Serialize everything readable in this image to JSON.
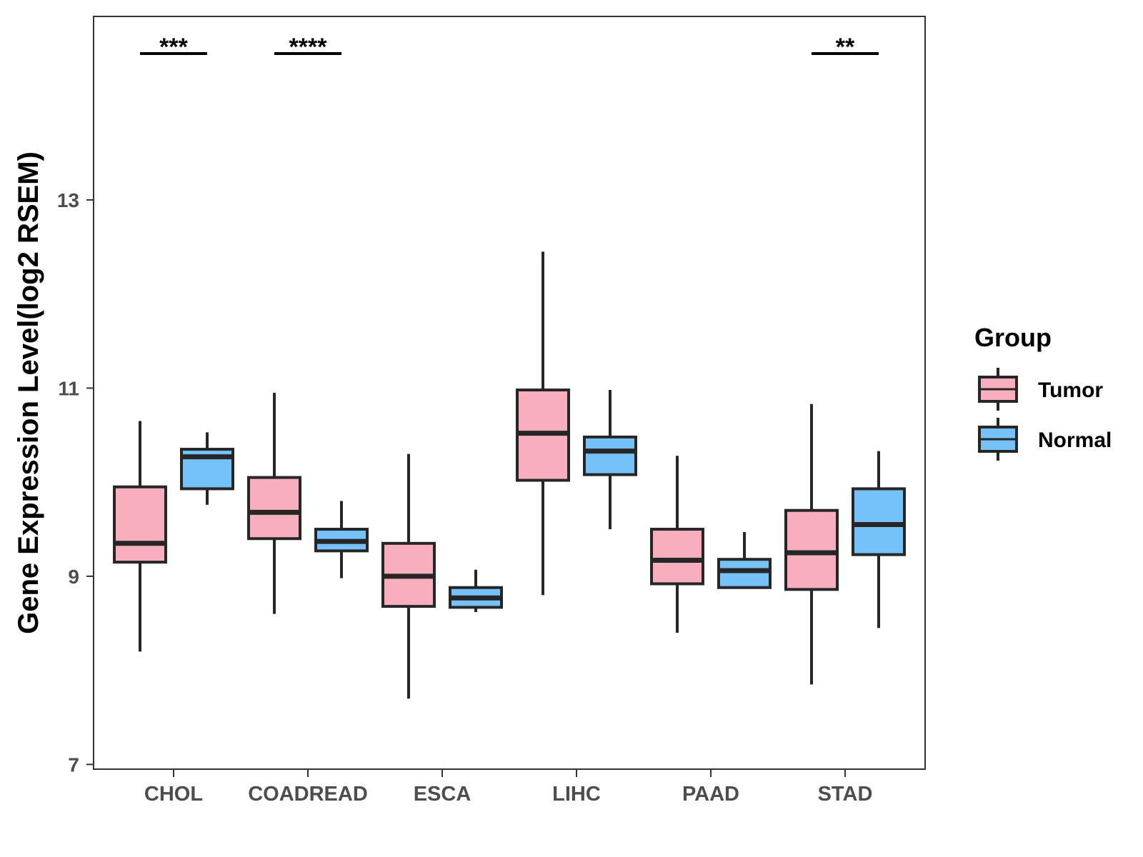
{
  "chart_data": {
    "type": "boxplot",
    "title": "",
    "xlabel": "",
    "ylabel": "Gene Expression Level(log2 RSEM)",
    "ylim": [
      6.95,
      14.95
    ],
    "yticks": [
      7,
      9,
      11,
      13
    ],
    "grid": false,
    "categories": [
      "CHOL",
      "COADREAD",
      "ESCA",
      "LIHC",
      "PAAD",
      "STAD"
    ],
    "legend": {
      "title": "Group",
      "position": "right",
      "entries": [
        {
          "name": "Tumor",
          "color": "#f9aec0"
        },
        {
          "name": "Normal",
          "color": "#76c1f9"
        }
      ]
    },
    "series": [
      {
        "name": "Tumor",
        "color": "#f9aec0",
        "boxes": [
          {
            "whisker_low": 8.2,
            "q1": 9.15,
            "median": 9.35,
            "q3": 9.95,
            "whisker_high": 10.65
          },
          {
            "whisker_low": 8.6,
            "q1": 9.4,
            "median": 9.68,
            "q3": 10.05,
            "whisker_high": 10.95
          },
          {
            "whisker_low": 7.7,
            "q1": 8.68,
            "median": 9.0,
            "q3": 9.35,
            "whisker_high": 10.3
          },
          {
            "whisker_low": 8.8,
            "q1": 10.02,
            "median": 10.52,
            "q3": 10.98,
            "whisker_high": 12.45
          },
          {
            "whisker_low": 8.4,
            "q1": 8.92,
            "median": 9.17,
            "q3": 9.5,
            "whisker_high": 10.28
          },
          {
            "whisker_low": 7.85,
            "q1": 8.86,
            "median": 9.25,
            "q3": 9.7,
            "whisker_high": 10.83
          }
        ]
      },
      {
        "name": "Normal",
        "color": "#76c1f9",
        "boxes": [
          {
            "whisker_low": 9.76,
            "q1": 9.93,
            "median": 10.27,
            "q3": 10.35,
            "whisker_high": 10.53
          },
          {
            "whisker_low": 8.98,
            "q1": 9.27,
            "median": 9.37,
            "q3": 9.5,
            "whisker_high": 9.8
          },
          {
            "whisker_low": 8.62,
            "q1": 8.67,
            "median": 8.77,
            "q3": 8.88,
            "whisker_high": 9.07
          },
          {
            "whisker_low": 9.5,
            "q1": 10.08,
            "median": 10.33,
            "q3": 10.48,
            "whisker_high": 10.98
          },
          {
            "whisker_low": 8.88,
            "q1": 8.88,
            "median": 9.06,
            "q3": 9.18,
            "whisker_high": 9.47
          },
          {
            "whisker_low": 8.45,
            "q1": 9.23,
            "median": 9.55,
            "q3": 9.93,
            "whisker_high": 10.33
          }
        ]
      }
    ],
    "significance": [
      {
        "category": "CHOL",
        "label": "***"
      },
      {
        "category": "COADREAD",
        "label": "****"
      },
      {
        "category": "STAD",
        "label": "**"
      }
    ]
  }
}
